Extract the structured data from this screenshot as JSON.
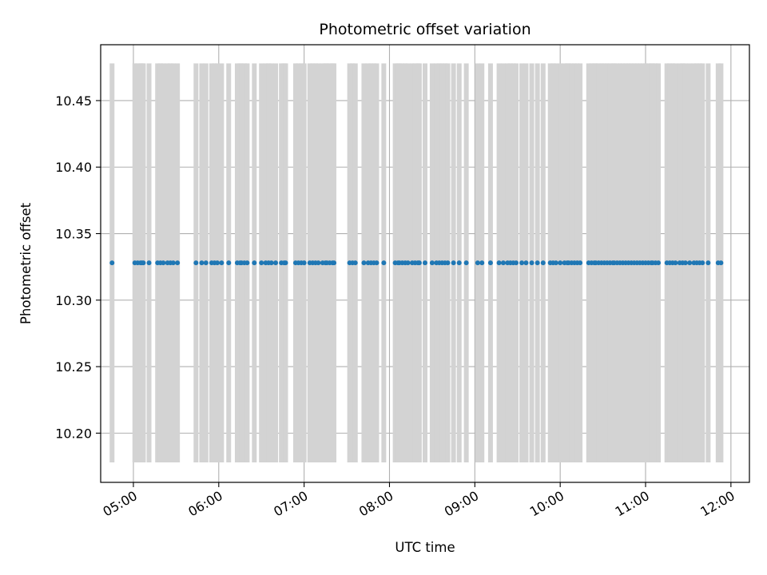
{
  "chart_data": {
    "type": "scatter",
    "title": "Photometric offset variation",
    "xlabel": "UTC time",
    "ylabel": "Photometric offset",
    "x_unit": "UTC time (HH:MM)",
    "xlim": [
      "04:37",
      "12:13"
    ],
    "ylim": [
      10.163,
      10.492
    ],
    "x_ticks": [
      "05:00",
      "06:00",
      "07:00",
      "08:00",
      "09:00",
      "10:00",
      "11:00",
      "12:00"
    ],
    "y_ticks": [
      "10.20",
      "10.25",
      "10.30",
      "10.35",
      "10.40",
      "10.45"
    ],
    "grid": true,
    "legend": "none",
    "error_bar_color": "#d3d3d3",
    "point_color": "#1f77b4",
    "series": [
      {
        "y": 10.328,
        "error_low": 10.178,
        "error_high": 10.478,
        "x": [
          "04:45",
          "05:01",
          "05:03",
          "05:05",
          "05:06",
          "05:07",
          "05:11",
          "05:17",
          "05:19",
          "05:21",
          "05:24",
          "05:26",
          "05:28",
          "05:31",
          "05:44",
          "05:48",
          "05:51",
          "05:55",
          "05:57",
          "05:59",
          "06:02",
          "06:07",
          "06:13",
          "06:15",
          "06:16",
          "06:18",
          "06:20",
          "06:25",
          "06:30",
          "06:33",
          "06:35",
          "06:37",
          "06:40",
          "06:44",
          "06:46",
          "06:47",
          "06:54",
          "06:56",
          "06:58",
          "07:00",
          "07:04",
          "07:06",
          "07:08",
          "07:10",
          "07:13",
          "07:15",
          "07:16",
          "07:18",
          "07:20",
          "07:21",
          "07:32",
          "07:34",
          "07:36",
          "07:42",
          "07:45",
          "07:47",
          "07:49",
          "07:51",
          "07:56",
          "08:04",
          "08:06",
          "08:07",
          "08:09",
          "08:11",
          "08:13",
          "08:16",
          "08:18",
          "08:20",
          "08:21",
          "08:25",
          "08:30",
          "08:33",
          "08:35",
          "08:37",
          "08:39",
          "08:41",
          "08:45",
          "08:49",
          "08:54",
          "09:02",
          "09:05",
          "09:11",
          "09:17",
          "09:20",
          "09:23",
          "09:25",
          "09:27",
          "09:29",
          "09:33",
          "09:36",
          "09:40",
          "09:44",
          "09:48",
          "09:53",
          "09:55",
          "09:57",
          "10:00",
          "10:03",
          "10:05",
          "10:06",
          "10:08",
          "10:10",
          "10:12",
          "10:14",
          "10:20",
          "10:22",
          "10:24",
          "10:25",
          "10:27",
          "10:29",
          "10:31",
          "10:33",
          "10:35",
          "10:37",
          "10:38",
          "10:40",
          "10:42",
          "10:44",
          "10:46",
          "10:48",
          "10:50",
          "10:52",
          "10:54",
          "10:56",
          "10:58",
          "11:00",
          "11:02",
          "11:04",
          "11:05",
          "11:07",
          "11:09",
          "11:15",
          "11:17",
          "11:19",
          "11:21",
          "11:24",
          "11:26",
          "11:28",
          "11:31",
          "11:34",
          "11:36",
          "11:38",
          "11:40",
          "11:44",
          "11:51",
          "11:53"
        ]
      }
    ]
  }
}
